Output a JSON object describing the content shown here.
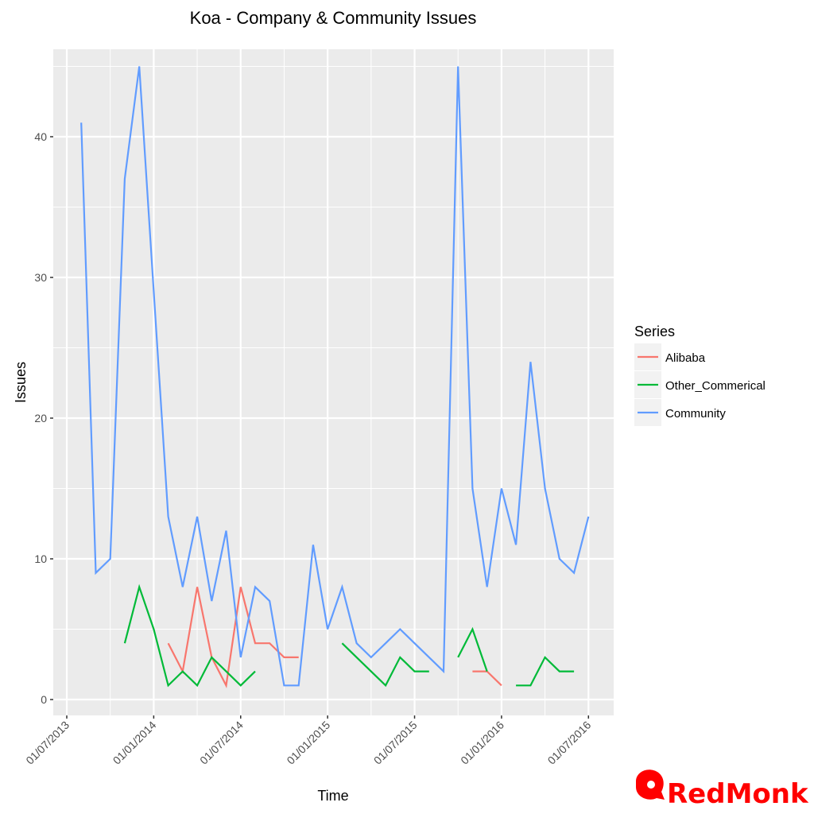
{
  "chart_data": {
    "type": "line",
    "title": "Koa - Company & Community Issues",
    "xlabel": "Time",
    "ylabel": "Issues",
    "ylim": [
      -1.2,
      47.2
    ],
    "yticks": [
      0,
      10,
      20,
      30,
      40
    ],
    "xticks": [
      "01/07/2013",
      "01/01/2014",
      "01/07/2014",
      "01/01/2015",
      "01/07/2015",
      "01/01/2016",
      "01/07/2016"
    ],
    "x_unit": "month index (0 = 01/07/2013)",
    "xlim": [
      -1,
      37.5
    ],
    "grid": true,
    "legend_position": "right",
    "legend_title": "Series",
    "series": [
      {
        "name": "Alibaba",
        "color": "#F8766D",
        "segments": [
          [
            [
              7,
              4
            ],
            [
              8,
              2
            ],
            [
              9,
              8
            ],
            [
              10,
              3
            ],
            [
              11,
              1
            ],
            [
              12,
              8
            ],
            [
              13,
              4
            ],
            [
              14,
              4
            ],
            [
              15,
              3
            ],
            [
              16,
              3
            ]
          ],
          [
            [
              28,
              2
            ],
            [
              29,
              2
            ],
            [
              30,
              1
            ]
          ]
        ]
      },
      {
        "name": "Other_Commerical",
        "color": "#00BA38",
        "segments": [
          [
            [
              4,
              4
            ],
            [
              5,
              8
            ],
            [
              6,
              5
            ],
            [
              7,
              1
            ],
            [
              8,
              2
            ],
            [
              9,
              1
            ],
            [
              10,
              3
            ],
            [
              11,
              2
            ],
            [
              12,
              1
            ],
            [
              13,
              2
            ]
          ],
          [
            [
              19,
              4
            ],
            [
              20,
              3
            ],
            [
              21,
              2
            ],
            [
              22,
              1
            ],
            [
              23,
              3
            ],
            [
              24,
              2
            ],
            [
              25,
              2
            ]
          ],
          [
            [
              27,
              3
            ],
            [
              28,
              5
            ],
            [
              29,
              2
            ]
          ],
          [
            [
              31,
              1
            ],
            [
              32,
              1
            ],
            [
              33,
              3
            ],
            [
              34,
              2
            ],
            [
              35,
              2
            ]
          ]
        ]
      },
      {
        "name": "Community",
        "color": "#619CFF",
        "segments": [
          [
            [
              1,
              41
            ],
            [
              2,
              9
            ],
            [
              3,
              10
            ],
            [
              4,
              37
            ],
            [
              5,
              45
            ],
            [
              6,
              29
            ],
            [
              7,
              13
            ],
            [
              8,
              8
            ],
            [
              9,
              13
            ],
            [
              10,
              7
            ],
            [
              11,
              12
            ],
            [
              12,
              3
            ],
            [
              13,
              8
            ],
            [
              14,
              7
            ],
            [
              15,
              1
            ],
            [
              16,
              1
            ],
            [
              17,
              11
            ],
            [
              18,
              5
            ],
            [
              19,
              8
            ],
            [
              20,
              4
            ],
            [
              21,
              3
            ],
            [
              22,
              4
            ],
            [
              23,
              5
            ],
            [
              24,
              4
            ],
            [
              25,
              3
            ],
            [
              26,
              2
            ],
            [
              27,
              45
            ],
            [
              28,
              15
            ],
            [
              29,
              8
            ],
            [
              30,
              15
            ],
            [
              31,
              11
            ],
            [
              32,
              24
            ],
            [
              33,
              15
            ],
            [
              34,
              10
            ],
            [
              35,
              9
            ],
            [
              36,
              13
            ]
          ]
        ]
      }
    ]
  },
  "watermark": {
    "brand": "RedMonk",
    "color": "#ff0000"
  }
}
